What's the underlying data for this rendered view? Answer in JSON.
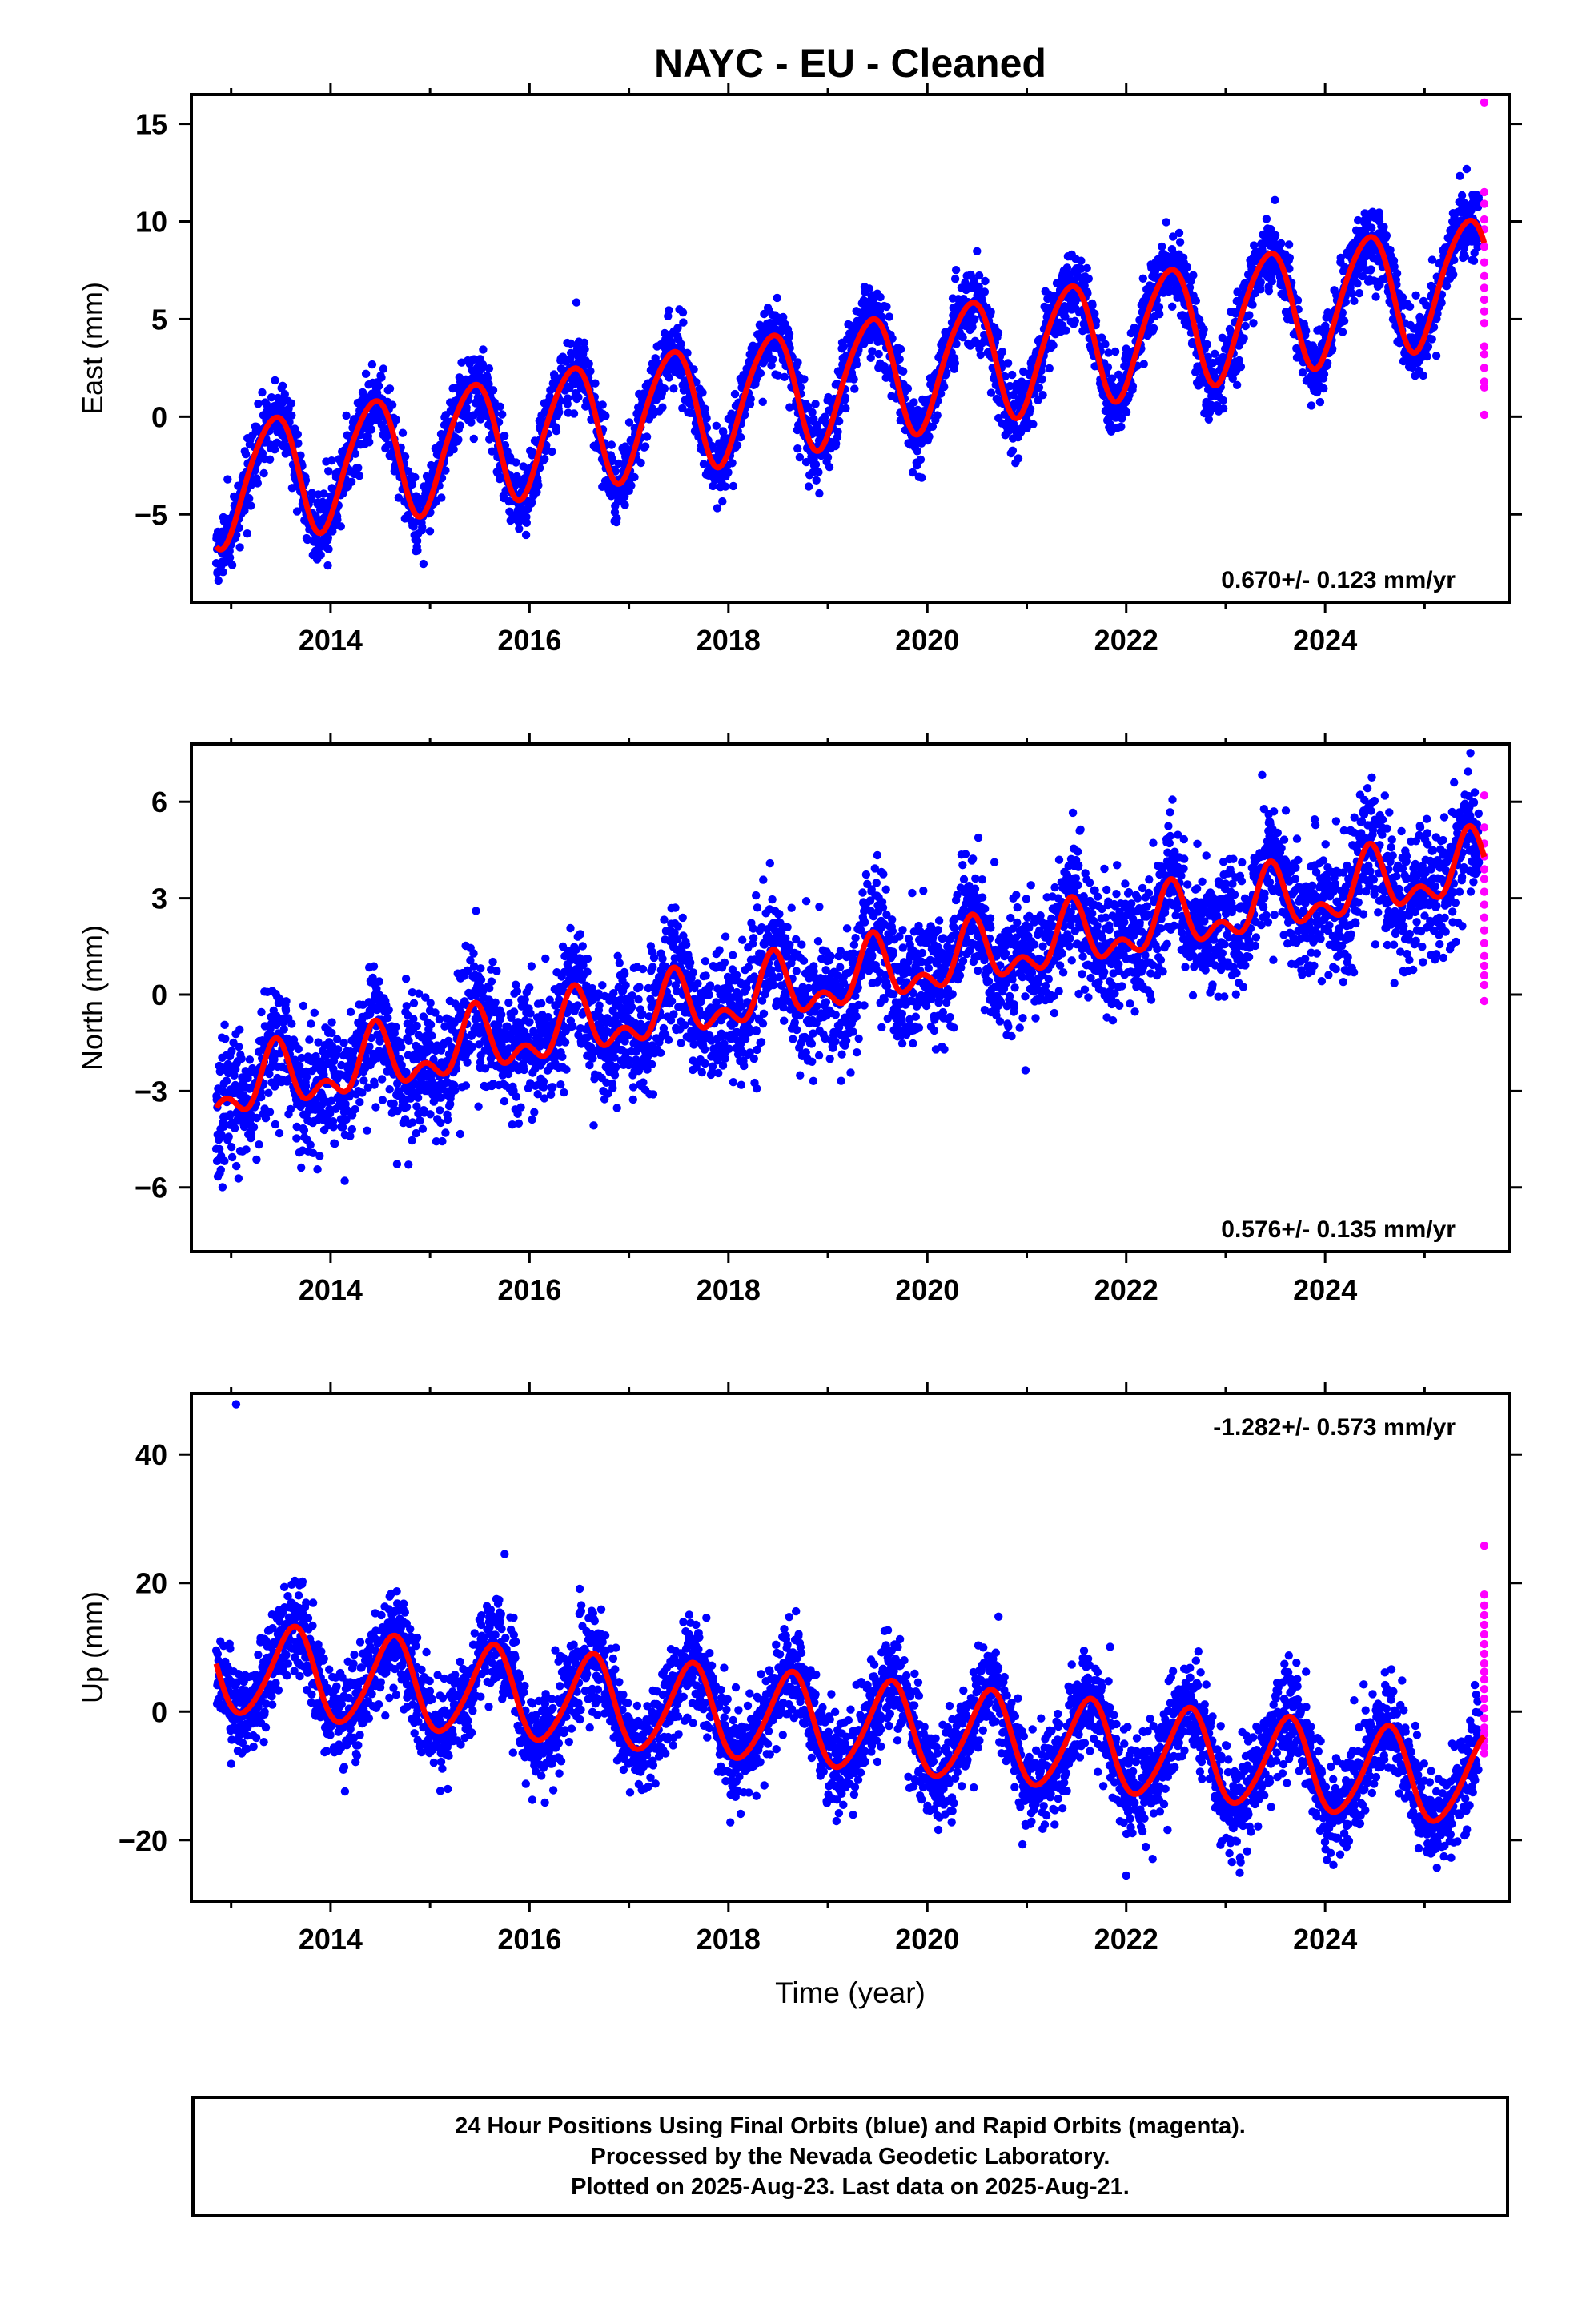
{
  "title": "NAYC  - EU - Cleaned",
  "colors": {
    "final_orbits": "#0000ff",
    "rapid_orbits": "#ff00ff",
    "model": "#ff0000",
    "axis": "#000000"
  },
  "chart_data": [
    {
      "type": "scatter",
      "ylabel": "East (mm)",
      "xlabel": "",
      "xlim": [
        2012.6,
        2025.85
      ],
      "ylim": [
        -9.5,
        16.5
      ],
      "x_ticks": [
        2014,
        2016,
        2018,
        2020,
        2022,
        2024
      ],
      "x_tick_labels": [
        "2014",
        "2016",
        "2018",
        "2020",
        "2022",
        "2024"
      ],
      "y_ticks": [
        -5,
        0,
        5,
        10,
        15
      ],
      "y_tick_labels": [
        "−5",
        "0",
        "5",
        "10",
        "15"
      ],
      "rate_label": "0.670+/- 0.123 mm/yr",
      "rate_label_position": "bottom-right",
      "series": [
        {
          "name": "Final Orbits",
          "color": "#0000ff",
          "style": "points",
          "x_range": [
            2012.85,
            2025.55
          ],
          "trend_intercept_at_2012": -4.2,
          "trend_rate": 0.84,
          "annual_amplitude": 3.1,
          "annual_peak": 0.42,
          "semiannual_amplitude": 0.35,
          "semiannual_peak": 0.1,
          "noise": 0.9,
          "seed": 11
        },
        {
          "name": "Rapid Orbits",
          "color": "#ff00ff",
          "style": "points",
          "x": [
            2025.6,
            2025.6,
            2025.6,
            2025.6,
            2025.6,
            2025.6,
            2025.6,
            2025.6,
            2025.6,
            2025.6,
            2025.6,
            2025.6,
            2025.6,
            2025.6,
            2025.6,
            2025.6,
            2025.6,
            2025.6
          ],
          "y": [
            16.1,
            11.5,
            10.9,
            10.1,
            9.6,
            8.7,
            7.9,
            7.2,
            6.6,
            6.0,
            5.4,
            4.8,
            3.6,
            3.2,
            2.5,
            1.8,
            1.5,
            0.1
          ]
        },
        {
          "name": "Model",
          "color": "#ff0000",
          "style": "line",
          "x_range": [
            2012.85,
            2025.6
          ],
          "trend_intercept_at_2012": -4.2,
          "trend_rate": 0.84,
          "annual_amplitude": 3.1,
          "annual_peak": 0.42,
          "semiannual_amplitude": 0.35,
          "semiannual_peak": 0.1
        }
      ]
    },
    {
      "type": "scatter",
      "ylabel": "North (mm)",
      "xlabel": "",
      "xlim": [
        2012.6,
        2025.85
      ],
      "ylim": [
        -8.0,
        7.8
      ],
      "x_ticks": [
        2014,
        2016,
        2018,
        2020,
        2022,
        2024
      ],
      "x_tick_labels": [
        "2014",
        "2016",
        "2018",
        "2020",
        "2022",
        "2024"
      ],
      "y_ticks": [
        -6,
        -3,
        0,
        3,
        6
      ],
      "y_tick_labels": [
        "−6",
        "−3",
        "0",
        "3",
        "6"
      ],
      "rate_label": "0.576+/- 0.135 mm/yr",
      "rate_label_position": "bottom-right",
      "series": [
        {
          "name": "Final Orbits",
          "color": "#0000ff",
          "style": "points",
          "x_range": [
            2012.85,
            2025.55
          ],
          "trend_intercept_at_2012": -3.5,
          "trend_rate": 0.55,
          "annual_amplitude": 0.8,
          "annual_peak": 0.45,
          "semiannual_amplitude": 0.55,
          "semiannual_peak": 0.45,
          "noise": 1.0,
          "seed": 23
        },
        {
          "name": "Rapid Orbits",
          "color": "#ff00ff",
          "style": "points",
          "x": [
            2025.6,
            2025.6,
            2025.6,
            2025.6,
            2025.6,
            2025.6,
            2025.6,
            2025.6,
            2025.6,
            2025.6,
            2025.6,
            2025.6,
            2025.6,
            2025.6,
            2025.6,
            2025.6
          ],
          "y": [
            6.2,
            5.2,
            4.7,
            4.3,
            3.9,
            3.6,
            3.2,
            2.8,
            2.4,
            2.0,
            1.6,
            1.2,
            0.9,
            0.6,
            0.3,
            -0.2
          ]
        },
        {
          "name": "Model",
          "color": "#ff0000",
          "style": "line",
          "x_range": [
            2012.85,
            2025.6
          ],
          "trend_intercept_at_2012": -3.5,
          "trend_rate": 0.55,
          "annual_amplitude": 0.8,
          "annual_peak": 0.45,
          "semiannual_amplitude": 0.55,
          "semiannual_peak": 0.45
        }
      ]
    },
    {
      "type": "scatter",
      "ylabel": "Up (mm)",
      "xlabel": "Time (year)",
      "xlim": [
        2012.6,
        2025.85
      ],
      "ylim": [
        -29.5,
        49.5
      ],
      "x_ticks": [
        2014,
        2016,
        2018,
        2020,
        2022,
        2024
      ],
      "x_tick_labels": [
        "2014",
        "2016",
        "2018",
        "2020",
        "2022",
        "2024"
      ],
      "y_ticks": [
        -20,
        0,
        20,
        40
      ],
      "y_tick_labels": [
        "−20",
        "0",
        "20",
        "40"
      ],
      "rate_label": "-1.282+/- 0.573 mm/yr",
      "rate_label_position": "top-right",
      "series": [
        {
          "name": "Final Orbits",
          "color": "#0000ff",
          "style": "points",
          "x_range": [
            2012.85,
            2025.55
          ],
          "trend_intercept_at_2012": 8.0,
          "trend_rate": -1.4,
          "annual_amplitude": 7.0,
          "annual_peak": 0.62,
          "semiannual_amplitude": 0.8,
          "semiannual_peak": 0.2,
          "noise": 3.8,
          "seed": 37,
          "outliers": [
            {
              "x": 2013.05,
              "y": 47.8
            },
            {
              "x": 2015.75,
              "y": 24.5
            },
            {
              "x": 2022.0,
              "y": -25.5
            }
          ]
        },
        {
          "name": "Rapid Orbits",
          "color": "#ff00ff",
          "style": "points",
          "x": [
            2025.6,
            2025.6,
            2025.6,
            2025.6,
            2025.6,
            2025.6,
            2025.6,
            2025.6,
            2025.6,
            2025.6,
            2025.6,
            2025.6,
            2025.6,
            2025.6,
            2025.6,
            2025.6,
            2025.6,
            2025.6,
            2025.6,
            2025.6
          ],
          "y": [
            25.8,
            18.2,
            16.5,
            15.0,
            13.5,
            12.0,
            10.5,
            9.0,
            7.5,
            6.2,
            5.0,
            3.5,
            2.0,
            0.5,
            -1.0,
            -2.5,
            -3.5,
            -4.5,
            -5.5,
            -6.5
          ]
        },
        {
          "name": "Model",
          "color": "#ff0000",
          "style": "line",
          "x_range": [
            2012.85,
            2025.6
          ],
          "trend_intercept_at_2012": 8.0,
          "trend_rate": -1.4,
          "annual_amplitude": 7.0,
          "annual_peak": 0.62,
          "semiannual_amplitude": 0.8,
          "semiannual_peak": 0.2
        }
      ]
    }
  ],
  "footer": {
    "line1": "24 Hour Positions Using Final Orbits (blue) and Rapid Orbits (magenta).",
    "line2": "Processed by the Nevada Geodetic Laboratory.",
    "line3": "Plotted on 2025-Aug-23. Last data on 2025-Aug-21."
  }
}
